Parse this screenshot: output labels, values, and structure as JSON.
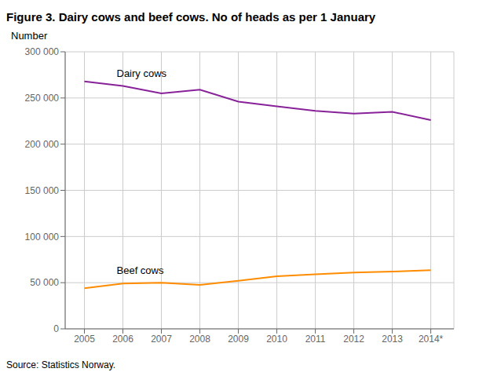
{
  "chart_data": {
    "type": "line",
    "title": "Figure 3. Dairy cows and beef cows. No of heads as per 1 January",
    "ylabel": "Number",
    "source": "Source: Statistics Norway.",
    "x": [
      2005,
      2006,
      2007,
      2008,
      2009,
      2010,
      2011,
      2012,
      2013,
      2014
    ],
    "series": [
      {
        "name": "Dairy cows",
        "color": "#882299",
        "values": [
          268000,
          263000,
          255000,
          259000,
          246000,
          241000,
          236000,
          233000,
          235000,
          226000
        ]
      },
      {
        "name": "Beef cows",
        "color": "#FF8C00",
        "values": [
          44000,
          49000,
          50000,
          47500,
          52000,
          57000,
          59000,
          61000,
          62000,
          63500
        ]
      }
    ],
    "xlim": [
      2004.5,
      2014.6
    ],
    "xticks": [
      2005,
      2006,
      2007,
      2008,
      2009,
      2010,
      2011,
      2012,
      2013,
      {
        "value": 2014,
        "label": "2014*"
      }
    ],
    "ylim": [
      0,
      300000
    ],
    "yticks": [
      0,
      {
        "value": 50000,
        "label": "50 000"
      },
      {
        "value": 100000,
        "label": "100 000"
      },
      {
        "value": 150000,
        "label": "150 000"
      },
      {
        "value": 200000,
        "label": "200 000"
      },
      {
        "value": 250000,
        "label": "250 000"
      },
      {
        "value": 300000,
        "label": "300 000"
      }
    ],
    "grid": true
  }
}
